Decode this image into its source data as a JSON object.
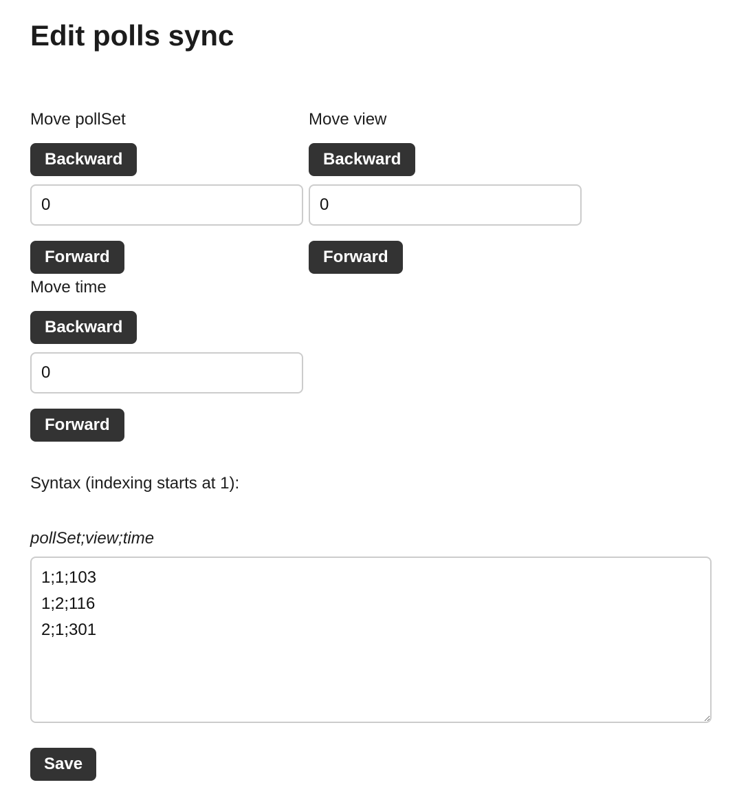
{
  "page_title": "Edit polls sync",
  "move_groups": {
    "pollset": {
      "label": "Move pollSet",
      "backward": "Backward",
      "forward": "Forward",
      "value": "0"
    },
    "view": {
      "label": "Move view",
      "backward": "Backward",
      "forward": "Forward",
      "value": "0"
    },
    "time": {
      "label": "Move time",
      "backward": "Backward",
      "forward": "Forward",
      "value": "0"
    }
  },
  "syntax": {
    "heading": "Syntax (indexing starts at 1):",
    "format_hint": "pollSet;view;time",
    "content": "1;1;103\n1;2;116\n2;1;301"
  },
  "save_label": "Save",
  "colors": {
    "button_background": "#333333",
    "button_text": "#ffffff",
    "input_border": "#cccccc",
    "text": "#1d1d1d",
    "page_background": "#ffffff"
  }
}
